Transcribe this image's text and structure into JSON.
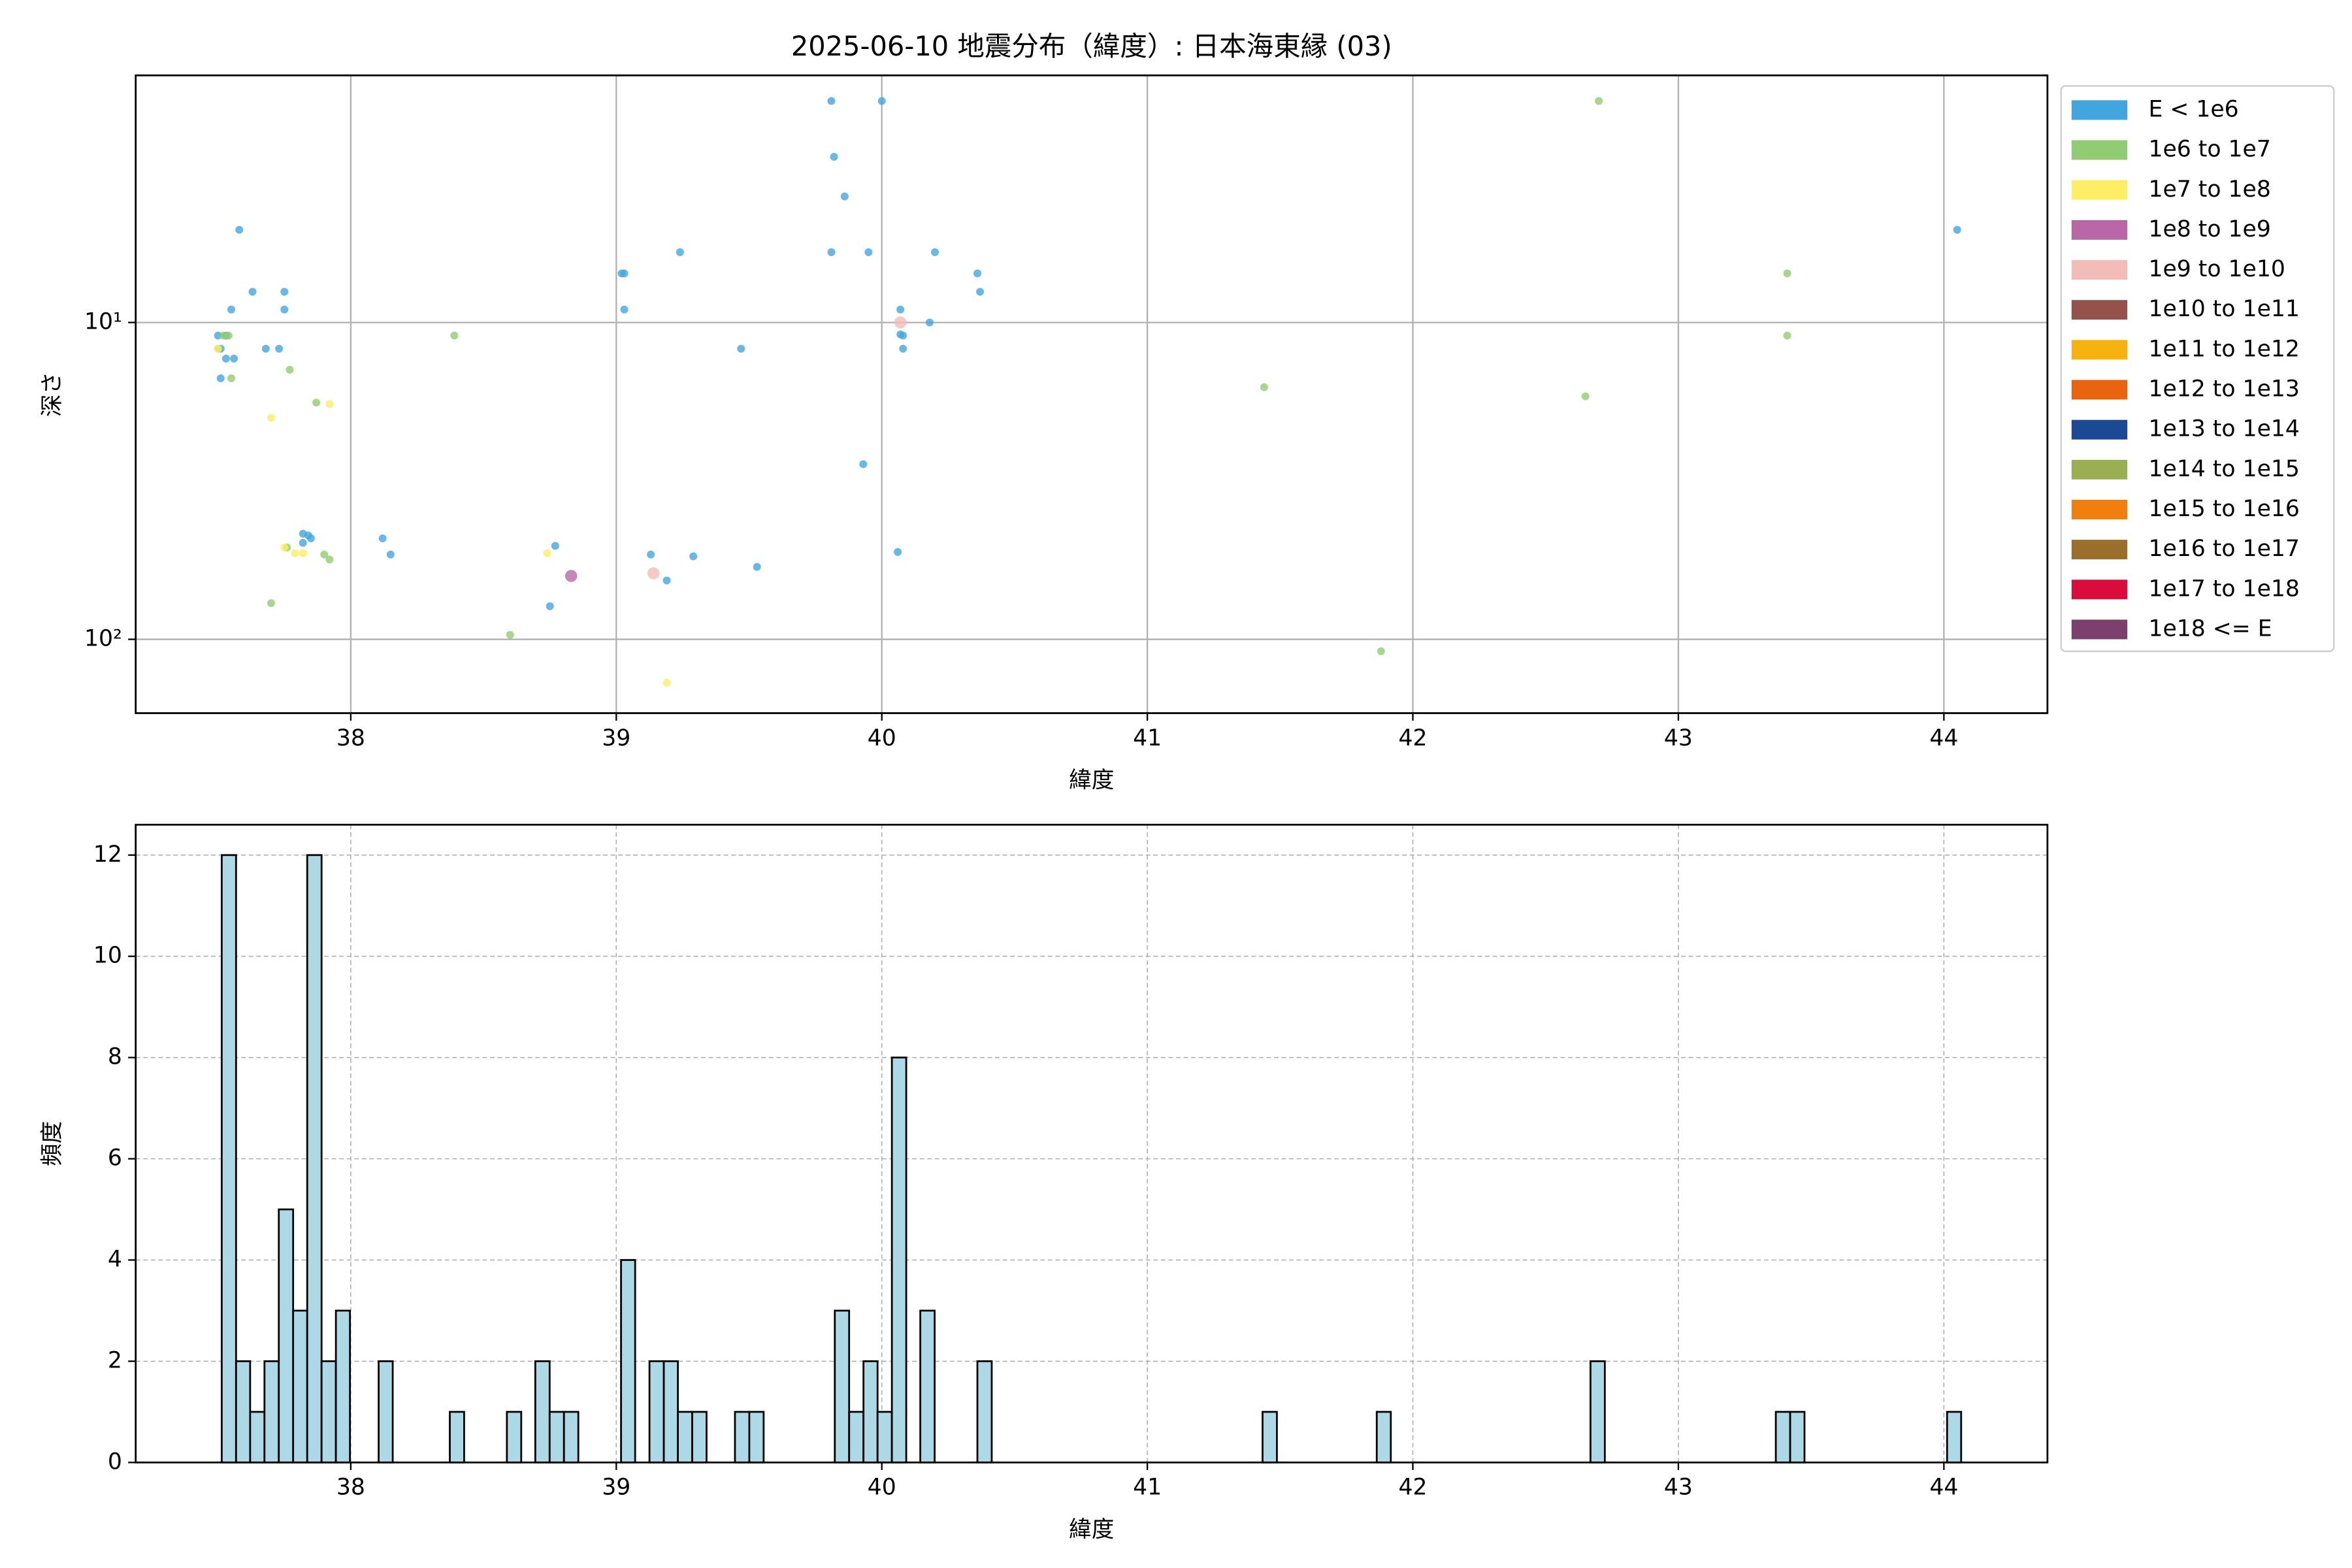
{
  "chart_data": [
    {
      "type": "scatter",
      "title": "2025-06-10 地震分布（緯度）: 日本海東縁 (03)",
      "x_label": "緯度",
      "y_label": "深さ",
      "xlim": [
        37.19,
        44.39
      ],
      "xticks": [
        38,
        39,
        40,
        41,
        42,
        43,
        44
      ],
      "ylim": [
        1.66,
        171
      ],
      "y_log": true,
      "y_inverted": true,
      "yticks": [
        {
          "value": 10,
          "label": "10¹"
        },
        {
          "value": 100,
          "label": "10²"
        }
      ],
      "grid": true,
      "legend": "outside upper right",
      "series": [
        {
          "name": "E < 1e6",
          "color": "#42a5dd",
          "x": [
            37.58,
            37.63,
            37.55,
            37.75,
            37.75,
            37.5,
            37.53,
            37.51,
            37.53,
            37.56,
            37.51,
            37.68,
            37.73,
            37.82,
            37.84,
            37.82,
            37.85,
            38.12,
            38.15,
            38.77,
            38.75,
            39.02,
            39.03,
            39.03,
            39.24,
            39.47,
            39.13,
            39.29,
            39.19,
            39.53,
            39.81,
            40.0,
            39.82,
            39.86,
            39.81,
            39.95,
            40.2,
            40.36,
            40.37,
            40.07,
            40.18,
            40.07,
            40.08,
            40.08,
            39.93,
            40.06,
            44.05
          ],
          "values": [
            5.1,
            8,
            9.1,
            8,
            9.1,
            11,
            11,
            12.1,
            13,
            13,
            15,
            12.1,
            12.1,
            46.4,
            47,
            49.6,
            48,
            48,
            54,
            50.7,
            78.6,
            7,
            7,
            9.1,
            6,
            12.1,
            54,
            54.7,
            65.2,
            59.1,
            2,
            2,
            3,
            4,
            6,
            6,
            6,
            7,
            8,
            9.1,
            10,
            10.9,
            11,
            12.1,
            28,
            53,
            5.1
          ]
        },
        {
          "name": "1e6 to 1e7",
          "color": "#92cc72",
          "x": [
            37.52,
            37.54,
            37.5,
            37.55,
            37.77,
            37.87,
            37.7,
            37.76,
            37.9,
            37.92,
            38.39,
            38.6,
            41.44,
            41.88,
            42.65,
            42.7,
            43.41,
            43.41
          ],
          "values": [
            11,
            11,
            12.1,
            15,
            14.1,
            17.9,
            76.9,
            51.3,
            54,
            56,
            11,
            96.8,
            16,
            109,
            17.1,
            2,
            7,
            11
          ]
        },
        {
          "name": "1e7 to 1e8",
          "color": "#fdee65",
          "x": [
            37.5,
            37.7,
            37.92,
            37.75,
            37.79,
            37.82,
            38.74,
            39.19
          ],
          "values": [
            12.1,
            20,
            18.1,
            51.3,
            53.5,
            53.5,
            53.5,
            137
          ]
        },
        {
          "name": "1e8 to 1e9",
          "color": "#b967a6",
          "x": [
            38.83
          ],
          "values": [
            63.1
          ]
        },
        {
          "name": "1e9 to 1e10",
          "color": "#f4bcb8",
          "x": [
            40.07,
            39.14
          ],
          "values": [
            10,
            61.9
          ]
        },
        {
          "name": "1e10 to 1e11",
          "color": "#95514c",
          "x": [],
          "values": []
        },
        {
          "name": "1e11 to 1e12",
          "color": "#f6b30f",
          "x": [],
          "values": []
        },
        {
          "name": "1e12 to 1e13",
          "color": "#e8640f",
          "x": [],
          "values": []
        },
        {
          "name": "1e13 to 1e14",
          "color": "#1c4993",
          "x": [],
          "values": []
        },
        {
          "name": "1e14 to 1e15",
          "color": "#9aae52",
          "x": [],
          "values": []
        },
        {
          "name": "1e15 to 1e16",
          "color": "#f07f10",
          "x": [],
          "values": []
        },
        {
          "name": "1e16 to 1e17",
          "color": "#9a6f2c",
          "x": [],
          "values": []
        },
        {
          "name": "1e17 to 1e18",
          "color": "#d90c3c",
          "x": [],
          "values": []
        },
        {
          "name": "1e18 <= E",
          "color": "#7c3f6e",
          "x": [],
          "values": []
        }
      ]
    },
    {
      "type": "histogram",
      "x_label": "緯度",
      "y_label": "頻度",
      "color": "#add8e6",
      "edge_color": "#000000",
      "xlim": [
        37.19,
        44.39
      ],
      "xticks": [
        38,
        39,
        40,
        41,
        42,
        43,
        44
      ],
      "ylim": [
        0,
        12.6
      ],
      "yticks": [
        0,
        2,
        4,
        6,
        8,
        10,
        12
      ],
      "grid": true,
      "grid_linestyle": "dashed",
      "bins": [
        37.514,
        37.568,
        37.621,
        37.675,
        37.729,
        37.783,
        37.836,
        37.89,
        37.944,
        37.997,
        38.051,
        38.105,
        38.158,
        38.212,
        38.266,
        38.32,
        38.373,
        38.427,
        38.481,
        38.534,
        38.588,
        38.642,
        38.695,
        38.749,
        38.803,
        38.857,
        38.91,
        38.964,
        39.018,
        39.071,
        39.125,
        39.179,
        39.232,
        39.286,
        39.34,
        39.394,
        39.447,
        39.501,
        39.555,
        39.608,
        39.662,
        39.716,
        39.769,
        39.823,
        39.877,
        39.931,
        39.984,
        40.038,
        40.092,
        40.145,
        40.199,
        40.253,
        40.306,
        40.36,
        40.414,
        40.468,
        40.521,
        40.575,
        40.629,
        40.682,
        40.736,
        40.79,
        40.843,
        40.897,
        40.951,
        41.005,
        41.058,
        41.112,
        41.166,
        41.219,
        41.273,
        41.327,
        41.38,
        41.434,
        41.488,
        41.542,
        41.595,
        41.649,
        41.703,
        41.756,
        41.81,
        41.864,
        41.917,
        41.971,
        42.025,
        42.079,
        42.132,
        42.186,
        42.24,
        42.293,
        42.347,
        42.401,
        42.454,
        42.508,
        42.562,
        42.616,
        42.669,
        42.723,
        42.777,
        42.83,
        42.884,
        42.938,
        42.991,
        43.045,
        43.099,
        43.153,
        43.206,
        43.26,
        43.314,
        43.367,
        43.421,
        43.475,
        43.528,
        43.582,
        43.636,
        43.69,
        43.743,
        43.797,
        43.851,
        43.904,
        43.958,
        44.012,
        44.065
      ],
      "values": [
        12,
        2,
        1,
        2,
        5,
        3,
        12,
        2,
        3,
        0,
        0,
        2,
        0,
        0,
        0,
        0,
        1,
        0,
        0,
        0,
        1,
        0,
        2,
        1,
        1,
        0,
        0,
        0,
        4,
        0,
        2,
        2,
        1,
        1,
        0,
        0,
        1,
        1,
        0,
        0,
        0,
        0,
        0,
        3,
        1,
        2,
        1,
        8,
        0,
        3,
        0,
        0,
        0,
        2,
        0,
        0,
        0,
        0,
        0,
        0,
        0,
        0,
        0,
        0,
        0,
        0,
        0,
        0,
        0,
        0,
        0,
        0,
        0,
        1,
        0,
        0,
        0,
        0,
        0,
        0,
        0,
        1,
        0,
        0,
        0,
        0,
        0,
        0,
        0,
        0,
        0,
        0,
        0,
        0,
        0,
        0,
        2,
        0,
        0,
        0,
        0,
        0,
        0,
        0,
        0,
        0,
        0,
        0,
        0,
        1,
        1,
        0,
        0,
        0,
        0,
        0,
        0,
        0,
        0,
        0,
        0,
        1
      ]
    }
  ]
}
